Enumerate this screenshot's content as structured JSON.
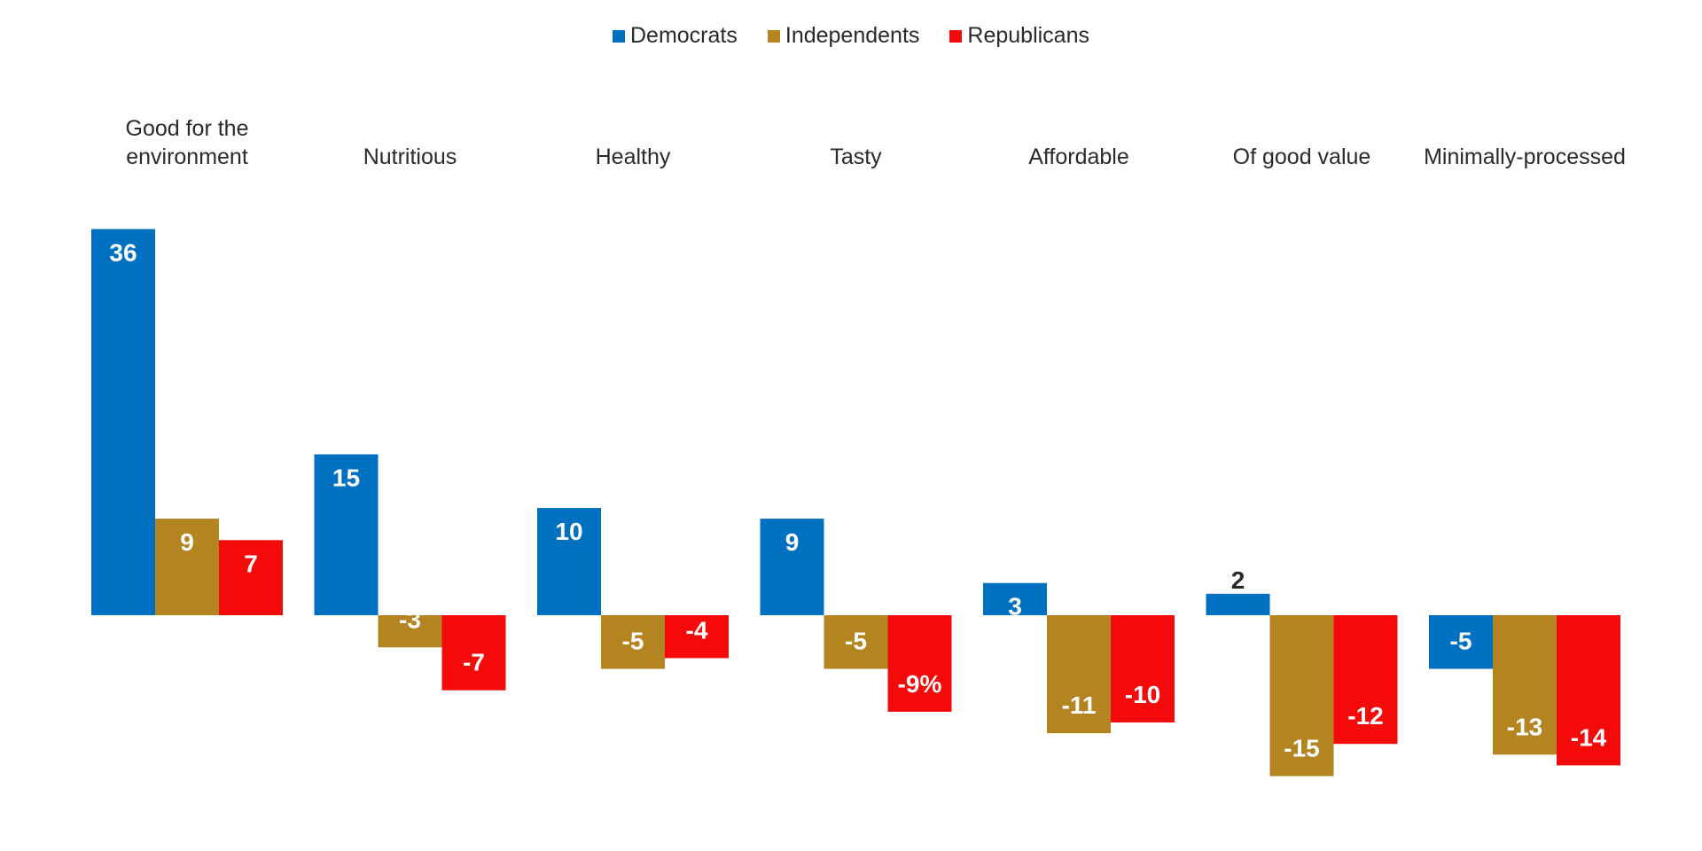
{
  "chart_data": {
    "type": "bar",
    "legend_position": "top-center",
    "grid": false,
    "categories": [
      [
        "Good for the",
        "environment"
      ],
      [
        "Nutritious"
      ],
      [
        "Healthy"
      ],
      [
        "Tasty"
      ],
      [
        "Affordable"
      ],
      [
        "Of good value"
      ],
      [
        "Minimally-processed"
      ]
    ],
    "series": [
      {
        "name": "Democrats",
        "color": "#0070C0",
        "values": [
          36,
          15,
          10,
          9,
          3,
          2,
          -5
        ],
        "labels": [
          "36",
          "15",
          "10",
          "9",
          "3",
          "2",
          "-5"
        ]
      },
      {
        "name": "Independents",
        "color": "#B38420",
        "values": [
          9,
          -3,
          -5,
          -5,
          -11,
          -15,
          -13
        ],
        "labels": [
          "9",
          "-3",
          "-5",
          "-5",
          "-11",
          "-15",
          "-13"
        ]
      },
      {
        "name": "Republicans",
        "color": "#F50A0A",
        "values": [
          7,
          -7,
          -4,
          -9,
          -10,
          -12,
          -14
        ],
        "labels": [
          "7",
          "-7",
          "-4",
          "-9%",
          "-10",
          "-12",
          "-14"
        ]
      }
    ],
    "ylim": [
      -15,
      36
    ]
  }
}
